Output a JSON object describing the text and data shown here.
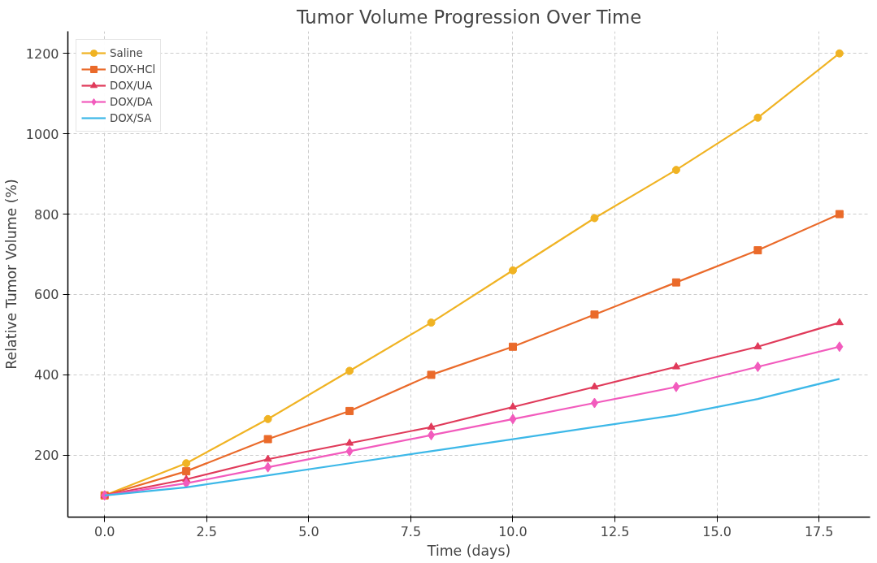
{
  "chart_data": {
    "type": "line",
    "title": "Tumor Volume Progression Over Time",
    "xlabel": "Time (days)",
    "ylabel": "Relative Tumor Volume (%)",
    "x": [
      0,
      2,
      4,
      6,
      8,
      10,
      12,
      14,
      16,
      18
    ],
    "xlim": [
      -0.9,
      18.75
    ],
    "ylim": [
      46,
      1255
    ],
    "xticks": [
      {
        "value": 0,
        "label": "0.0"
      },
      {
        "value": 2.5,
        "label": "2.5"
      },
      {
        "value": 5,
        "label": "5.0"
      },
      {
        "value": 7.5,
        "label": "7.5"
      },
      {
        "value": 10,
        "label": "10.0"
      },
      {
        "value": 12.5,
        "label": "12.5"
      },
      {
        "value": 15,
        "label": "15.0"
      },
      {
        "value": 17.5,
        "label": "17.5"
      }
    ],
    "yticks": [
      200,
      400,
      600,
      800,
      1000,
      1200
    ],
    "grid": true,
    "legend": "top left",
    "line_style": "solid",
    "series": [
      {
        "name": "Saline",
        "color": "#f0b323",
        "marker": "circle",
        "values": [
          100,
          180,
          290,
          410,
          530,
          660,
          790,
          910,
          1040,
          1200
        ]
      },
      {
        "name": "DOX-HCl",
        "color": "#ea6a2a",
        "marker": "square",
        "values": [
          100,
          160,
          240,
          310,
          400,
          470,
          550,
          630,
          710,
          800
        ]
      },
      {
        "name": "DOX/UA",
        "color": "#e03a5a",
        "marker": "triangle",
        "values": [
          100,
          140,
          190,
          230,
          270,
          320,
          370,
          420,
          470,
          530
        ]
      },
      {
        "name": "DOX/DA",
        "color": "#f25bbd",
        "marker": "diamond",
        "values": [
          100,
          130,
          170,
          210,
          250,
          290,
          330,
          370,
          420,
          470
        ]
      },
      {
        "name": "DOX/SA",
        "color": "#3db8e8",
        "marker": "none",
        "values": [
          100,
          120,
          150,
          180,
          210,
          240,
          270,
          300,
          340,
          390
        ]
      }
    ]
  }
}
